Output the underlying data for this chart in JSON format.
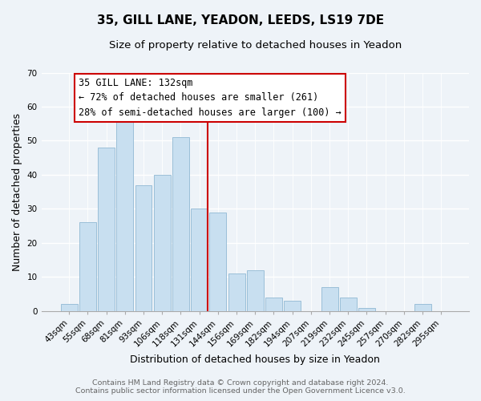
{
  "title": "35, GILL LANE, YEADON, LEEDS, LS19 7DE",
  "subtitle": "Size of property relative to detached houses in Yeadon",
  "xlabel": "Distribution of detached houses by size in Yeadon",
  "ylabel": "Number of detached properties",
  "bar_labels": [
    "43sqm",
    "55sqm",
    "68sqm",
    "81sqm",
    "93sqm",
    "106sqm",
    "118sqm",
    "131sqm",
    "144sqm",
    "156sqm",
    "169sqm",
    "182sqm",
    "194sqm",
    "207sqm",
    "219sqm",
    "232sqm",
    "245sqm",
    "257sqm",
    "270sqm",
    "282sqm",
    "295sqm"
  ],
  "bar_values": [
    2,
    26,
    48,
    56,
    37,
    40,
    51,
    30,
    29,
    11,
    12,
    4,
    3,
    0,
    7,
    4,
    1,
    0,
    0,
    2,
    0
  ],
  "bar_color": "#c8dff0",
  "bar_edge_color": "#9bbfd8",
  "vline_color": "#cc0000",
  "ylim": [
    0,
    70
  ],
  "yticks": [
    0,
    10,
    20,
    30,
    40,
    50,
    60,
    70
  ],
  "annotation_title": "35 GILL LANE: 132sqm",
  "annotation_line1": "← 72% of detached houses are smaller (261)",
  "annotation_line2": "28% of semi-detached houses are larger (100) →",
  "annotation_box_color": "#ffffff",
  "annotation_box_edge": "#cc0000",
  "footer_line1": "Contains HM Land Registry data © Crown copyright and database right 2024.",
  "footer_line2": "Contains public sector information licensed under the Open Government Licence v3.0.",
  "background_color": "#eef3f8",
  "plot_bg_color": "#eef3f8",
  "title_fontsize": 11,
  "subtitle_fontsize": 9.5,
  "axis_label_fontsize": 9,
  "tick_fontsize": 7.5,
  "footer_fontsize": 6.8,
  "annotation_fontsize": 8.5,
  "vline_bar_index": 7
}
